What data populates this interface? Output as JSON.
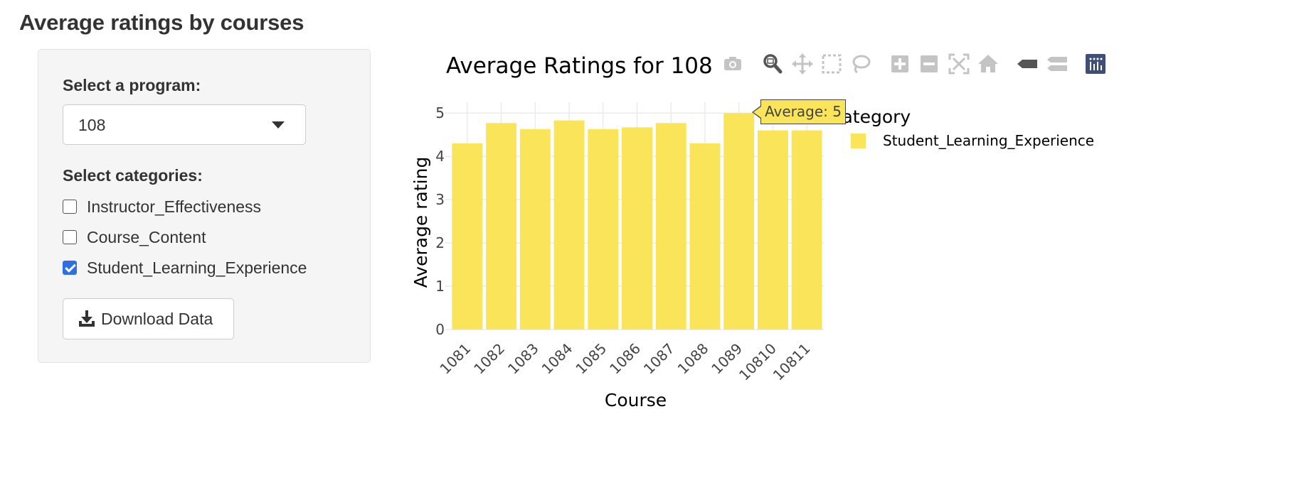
{
  "page": {
    "title": "Average ratings by courses"
  },
  "sidebar": {
    "program_label": "Select a program:",
    "program_value": "108",
    "categories_label": "Select categories:",
    "categories": [
      {
        "label": "Instructor_Effectiveness",
        "checked": false
      },
      {
        "label": "Course_Content",
        "checked": false
      },
      {
        "label": "Student_Learning_Experience",
        "checked": true
      }
    ],
    "download_label": "Download Data"
  },
  "modebar": {
    "buttons": [
      "camera-icon",
      "zoom-icon",
      "pan-icon",
      "box-select-icon",
      "lasso-select-icon",
      "zoom-in-icon",
      "zoom-out-icon",
      "autoscale-icon",
      "reset-axes-icon",
      "hover-closest-icon",
      "hover-compare-icon",
      "plotly-logo-icon"
    ]
  },
  "tooltip": {
    "text": "Average: 5"
  },
  "colors": {
    "bar": "#fae55a",
    "checkbox": "#2f6fe4",
    "plotly_logo": "#3f4f75"
  },
  "chart_data": {
    "type": "bar",
    "title": "Average Ratings for 108",
    "xlabel": "Course",
    "ylabel": "Average rating",
    "categories": [
      "1081",
      "1082",
      "1083",
      "1084",
      "1085",
      "1086",
      "1087",
      "1088",
      "1089",
      "10810",
      "10811"
    ],
    "series": [
      {
        "name": "Student_Learning_Experience",
        "values": [
          4.3,
          4.77,
          4.63,
          4.83,
          4.63,
          4.67,
          4.77,
          4.3,
          5,
          4.6,
          4.6
        ]
      }
    ],
    "ylim": [
      0,
      5.25
    ],
    "yticks": [
      0,
      1,
      2,
      3,
      4,
      5
    ],
    "legend_title": "Category",
    "legend_position": "top-right",
    "grid": true
  }
}
